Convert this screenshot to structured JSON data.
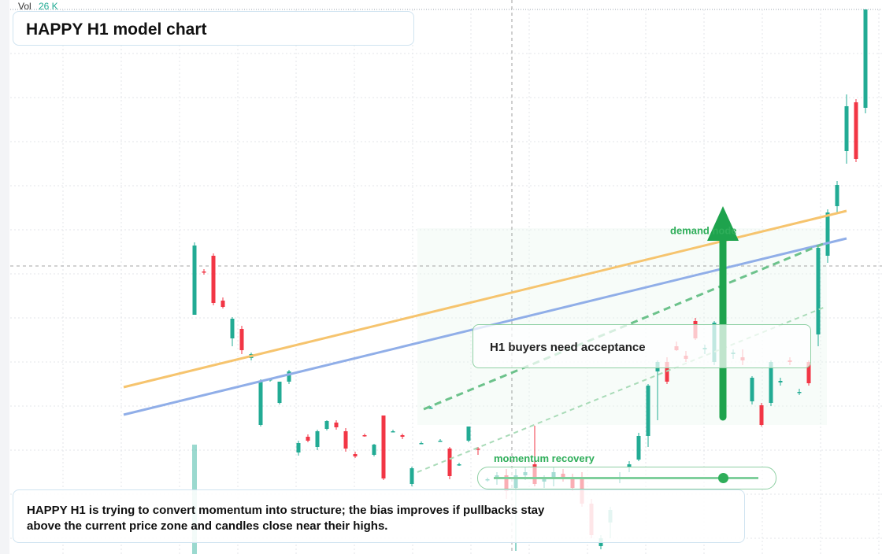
{
  "chart_data": {
    "type": "candlestick",
    "title": "HAPPY H1 model chart",
    "volume_label": "Vol",
    "volume_value": "26 K",
    "annotation_node": "demand node",
    "annotation_box": "H1 buyers need acceptance",
    "annotation_slider": "momentum recovery",
    "caption": "HAPPY H1 is trying to convert momentum into structure; the bias improves if pullbacks stay above the current price zone and candles close near their highs.",
    "up_color": "#22ab94",
    "down_color": "#f23645",
    "ylim": [
      0,
      700
    ],
    "candles": [
      [
        304,
        396,
        304,
        392
      ],
      [
        359,
        362,
        355,
        358
      ],
      [
        379,
        382,
        316,
        319
      ],
      [
        322,
        326,
        312,
        314
      ],
      [
        274,
        301,
        264,
        299
      ],
      [
        286,
        290,
        254,
        259
      ],
      [
        249,
        256,
        246,
        254
      ],
      [
        164,
        222,
        162,
        219
      ],
      [
        221,
        223,
        219,
        222
      ],
      [
        192,
        219,
        190,
        219
      ],
      [
        219,
        234,
        216,
        232
      ],
      [
        129,
        144,
        125,
        141
      ],
      [
        149,
        152,
        142,
        144
      ],
      [
        136,
        158,
        132,
        156
      ],
      [
        159,
        170,
        157,
        169
      ],
      [
        167,
        170,
        158,
        161
      ],
      [
        156,
        160,
        130,
        134
      ],
      [
        127,
        130,
        122,
        124
      ],
      [
        151,
        153,
        149,
        150
      ],
      [
        126,
        140,
        124,
        139
      ],
      [
        176,
        176,
        94,
        96
      ],
      [
        156,
        158,
        155,
        156
      ],
      [
        151,
        153,
        146,
        149
      ],
      [
        89,
        111,
        86,
        109
      ],
      [
        141,
        143,
        140,
        141
      ],
      [
        186,
        188,
        185,
        186
      ],
      [
        144,
        146,
        143,
        144
      ],
      [
        134,
        136,
        95,
        99
      ],
      [
        114,
        116,
        112,
        114
      ],
      [
        144,
        162,
        142,
        162
      ],
      [
        134,
        136,
        126,
        133
      ],
      [
        94,
        97,
        92,
        95
      ],
      [
        96,
        104,
        88,
        100
      ],
      [
        100,
        108,
        70,
        80
      ],
      [
        84,
        108,
        4,
        100
      ],
      [
        100,
        110,
        94,
        104
      ],
      [
        114,
        163,
        86,
        89
      ],
      [
        92,
        100,
        84,
        96
      ],
      [
        96,
        110,
        86,
        104
      ],
      [
        102,
        108,
        92,
        98
      ],
      [
        96,
        102,
        80,
        84
      ],
      [
        98,
        104,
        60,
        64
      ],
      [
        64,
        70,
        20,
        24
      ],
      [
        10,
        24,
        6,
        20
      ],
      [
        40,
        60,
        20,
        56
      ],
      [
        96,
        104,
        90,
        98
      ],
      [
        110,
        118,
        104,
        114
      ],
      [
        120,
        154,
        118,
        150
      ],
      [
        150,
        216,
        136,
        214
      ],
      [
        232,
        246,
        170,
        244
      ],
      [
        244,
        250,
        216,
        219
      ],
      [
        264,
        270,
        258,
        259
      ],
      [
        252,
        258,
        244,
        248
      ],
      [
        296,
        300,
        272,
        274
      ],
      [
        260,
        266,
        254,
        262
      ],
      [
        244,
        296,
        240,
        294
      ],
      [
        262,
        268,
        256,
        262
      ],
      [
        254,
        260,
        248,
        256
      ],
      [
        250,
        260,
        240,
        246
      ],
      [
        194,
        226,
        190,
        224
      ],
      [
        189,
        192,
        162,
        164
      ],
      [
        192,
        246,
        188,
        244
      ],
      [
        218,
        224,
        214,
        220
      ],
      [
        246,
        250,
        240,
        244
      ],
      [
        206,
        210,
        202,
        206
      ],
      [
        244,
        246,
        214,
        217
      ],
      [
        279,
        392,
        264,
        389
      ],
      [
        379,
        438,
        370,
        434
      ],
      [
        442,
        474,
        434,
        469
      ],
      [
        512,
        584,
        496,
        569
      ],
      [
        574,
        578,
        498,
        502
      ],
      [
        567,
        692,
        560,
        692
      ]
    ]
  }
}
